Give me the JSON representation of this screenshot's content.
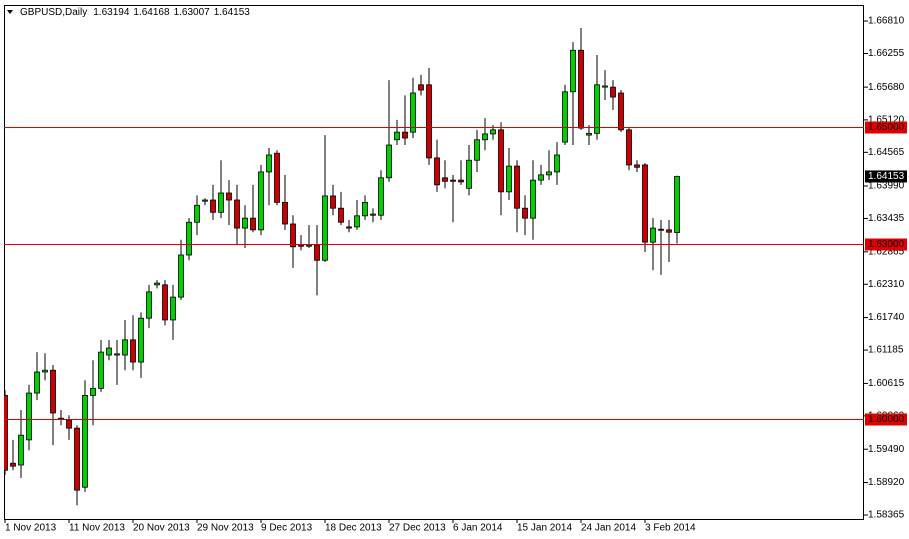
{
  "chart_data": {
    "type": "candlestick",
    "symbol": "GBPUSD,Daily",
    "categories": [
      "1 Nov 2013",
      null,
      null,
      null,
      null,
      null,
      null,
      null,
      "11 Nov 2013",
      null,
      null,
      null,
      null,
      null,
      null,
      null,
      "20 Nov 2013",
      null,
      null,
      null,
      null,
      null,
      null,
      null,
      "29 Nov 2013",
      null,
      null,
      null,
      null,
      null,
      null,
      null,
      "9 Dec 2013",
      null,
      null,
      null,
      null,
      null,
      null,
      null,
      "18 Dec 2013",
      null,
      null,
      null,
      null,
      null,
      null,
      null,
      "27 Dec 2013",
      null,
      null,
      null,
      null,
      null,
      null,
      null,
      "6 Jan 2014",
      null,
      null,
      null,
      null,
      null,
      null,
      null,
      "15 Jan 2014",
      null,
      null,
      null,
      null,
      null,
      null,
      null,
      "24 Jan 2014",
      null,
      null,
      null,
      null,
      null,
      null,
      null,
      "3 Feb 2014",
      null,
      null,
      null,
      null
    ],
    "open": [
      1.6041,
      1.5925,
      1.5922,
      1.5965,
      1.6045,
      1.6081,
      1.6084,
      1.6002,
      1.5999,
      1.5985,
      1.5884,
      1.6041,
      1.6053,
      1.611,
      1.611,
      1.611,
      1.6136,
      1.6098,
      1.6173,
      1.623,
      1.623,
      1.617,
      1.6209,
      1.6281,
      1.6337,
      1.6373,
      1.6375,
      1.6354,
      1.6387,
      1.6375,
      1.6327,
      1.6344,
      1.6324,
      1.6423,
      1.6455,
      1.6371,
      1.6334,
      1.6298,
      1.6296,
      1.6298,
      1.6272,
      1.6382,
      1.6361,
      1.6329,
      1.6329,
      1.6348,
      1.6349,
      1.6349,
      1.6413,
      1.6478,
      1.6491,
      1.6491,
      1.6572,
      1.6572,
      1.6447,
      1.6413,
      1.6409,
      1.6409,
      1.6395,
      1.6443,
      1.6478,
      1.6488,
      1.6495,
      1.6389,
      1.6433,
      1.6361,
      1.6344,
      1.6409,
      1.6418,
      1.6423,
      1.6474,
      1.656,
      1.6631,
      1.6486,
      1.6489,
      1.6568,
      1.6568,
      1.6558,
      1.6495,
      1.6435,
      1.6435,
      1.6303,
      1.6325,
      1.6324,
      1.63194
    ],
    "high": [
      1.605,
      1.5965,
      1.6016,
      1.6059,
      1.6115,
      1.6113,
      1.6093,
      1.6016,
      1.6007,
      1.599,
      1.6067,
      1.6101,
      1.6136,
      1.6136,
      1.6136,
      1.617,
      1.6178,
      1.6183,
      1.623,
      1.6238,
      1.6238,
      1.623,
      1.6307,
      1.6344,
      1.6383,
      1.6378,
      1.6401,
      1.6443,
      1.6409,
      1.6401,
      1.6366,
      1.6401,
      1.6435,
      1.6464,
      1.646,
      1.6418,
      1.6349,
      1.6315,
      1.6332,
      1.6332,
      1.6486,
      1.6401,
      1.6389,
      1.6341,
      1.6375,
      1.6383,
      1.6361,
      1.6426,
      1.658,
      1.6512,
      1.6554,
      1.6584,
      1.6589,
      1.6601,
      1.6478,
      1.6443,
      1.6418,
      1.6443,
      1.6469,
      1.6495,
      1.6515,
      1.6503,
      1.6508,
      1.6464,
      1.6443,
      1.6383,
      1.6443,
      1.6435,
      1.646,
      1.6474,
      1.6572,
      1.6645,
      1.6669,
      1.6503,
      1.6623,
      1.6597,
      1.658,
      1.6563,
      1.6498,
      1.6443,
      1.6438,
      1.6344,
      1.6341,
      1.6341,
      1.64168
    ],
    "low": [
      1.5905,
      1.5913,
      1.59,
      1.5947,
      1.6033,
      1.6067,
      1.5956,
      1.599,
      1.5965,
      1.5853,
      1.5876,
      1.599,
      1.6047,
      1.6101,
      1.6059,
      1.6084,
      1.6084,
      1.6071,
      1.6156,
      1.6224,
      1.6161,
      1.6136,
      1.6204,
      1.6272,
      1.6315,
      1.6366,
      1.6341,
      1.6344,
      1.6332,
      1.6298,
      1.6293,
      1.632,
      1.6315,
      1.6366,
      1.6366,
      1.6324,
      1.6259,
      1.6289,
      1.6293,
      1.6212,
      1.6269,
      1.6349,
      1.6332,
      1.632,
      1.6324,
      1.6341,
      1.6337,
      1.6341,
      1.6406,
      1.6469,
      1.6469,
      1.6481,
      1.6554,
      1.6435,
      1.6389,
      1.6395,
      1.6337,
      1.6401,
      1.6383,
      1.6423,
      1.646,
      1.6478,
      1.6349,
      1.6375,
      1.632,
      1.6315,
      1.6307,
      1.6401,
      1.6409,
      1.6401,
      1.6469,
      1.6469,
      1.6495,
      1.6469,
      1.6478,
      1.6546,
      1.6529,
      1.6491,
      1.6426,
      1.6423,
      1.6286,
      1.6255,
      1.6247,
      1.6269,
      1.63007
    ],
    "close": [
      1.5913,
      1.592,
      1.5973,
      1.6045,
      1.6081,
      1.6084,
      1.6011,
      1.6,
      1.5985,
      1.5879,
      1.6041,
      1.6053,
      1.6115,
      1.6122,
      1.6112,
      1.6136,
      1.6098,
      1.6173,
      1.6218,
      1.6233,
      1.617,
      1.6209,
      1.6281,
      1.6337,
      1.6366,
      1.6375,
      1.6354,
      1.6387,
      1.6375,
      1.6327,
      1.6344,
      1.6324,
      1.6423,
      1.6452,
      1.6371,
      1.6334,
      1.6295,
      1.6296,
      1.6298,
      1.6272,
      1.6382,
      1.6361,
      1.6337,
      1.6327,
      1.6348,
      1.6371,
      1.6351,
      1.6413,
      1.6469,
      1.6491,
      1.6481,
      1.6558,
      1.6563,
      1.6447,
      1.6401,
      1.6407,
      1.6407,
      1.6406,
      1.6443,
      1.6478,
      1.6488,
      1.6495,
      1.6389,
      1.6433,
      1.6361,
      1.6344,
      1.6409,
      1.6418,
      1.6423,
      1.6452,
      1.656,
      1.6631,
      1.6498,
      1.6489,
      1.6572,
      1.657,
      1.6551,
      1.6495,
      1.6435,
      1.6431,
      1.6303,
      1.6327,
      1.6324,
      1.632,
      1.64153
    ],
    "up_color": "#00d000",
    "down_color": "#cc0000",
    "level_color": "#e00000",
    "levels": [
      {
        "value": 1.65,
        "label": "1.65000"
      },
      {
        "value": 1.63,
        "label": "1.63000"
      },
      {
        "value": 1.6,
        "label": "1.60000"
      }
    ],
    "ylim": [
      1.58297,
      1.67084
    ],
    "yticks": [
      {
        "value": 1.6681,
        "label": "1.66810"
      },
      1.66255,
      {
        "value": 1.6568,
        "label": "1.65680"
      },
      {
        "value": 1.6512,
        "label": "1.65120"
      },
      1.64565,
      {
        "value": 1.6399,
        "label": "1.63990"
      },
      1.63435,
      1.62865,
      {
        "value": 1.6231,
        "label": "1.62310"
      },
      {
        "value": 1.6174,
        "label": "1.61740"
      },
      1.61185,
      1.60615,
      {
        "value": 1.6006,
        "label": "1.60060"
      },
      {
        "value": 1.5949,
        "label": "1.59490"
      },
      {
        "value": 1.5892,
        "label": "1.58920"
      },
      1.58365
    ],
    "grid": false
  }
}
